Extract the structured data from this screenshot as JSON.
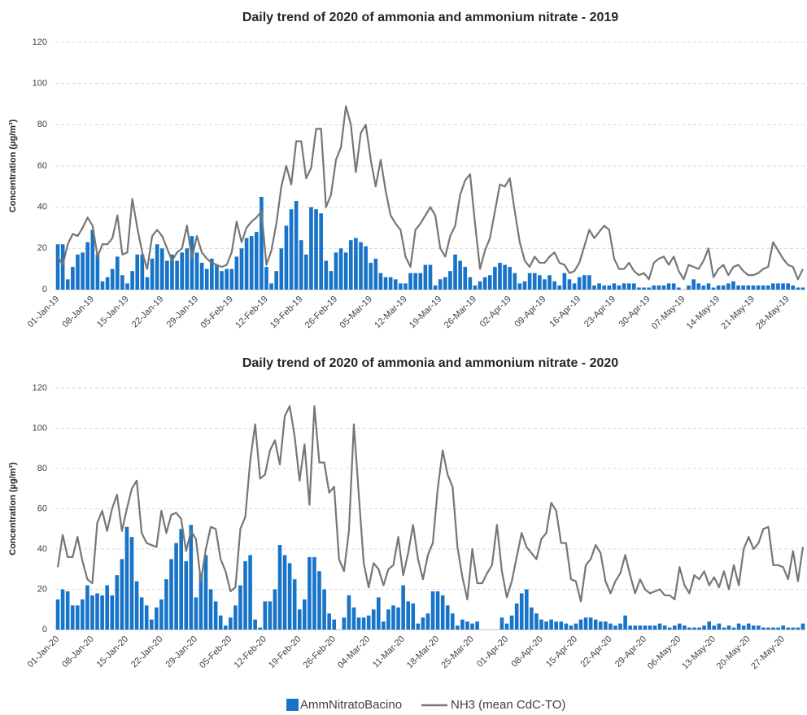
{
  "chart_data": [
    {
      "type": "bar_line",
      "title": "Daily trend of 2020 of ammonia and ammonium nitrate - 2019",
      "y_label": "Concentration (µg/m³)",
      "categories": [
        "01-Jan-19",
        null,
        null,
        null,
        null,
        null,
        null,
        "08-Jan-19",
        null,
        null,
        null,
        null,
        null,
        null,
        "15-Jan-19",
        null,
        null,
        null,
        null,
        null,
        null,
        "22-Jan-19",
        null,
        null,
        null,
        null,
        null,
        null,
        "29-Jan-19",
        null,
        null,
        null,
        null,
        null,
        null,
        "05-Feb-19",
        null,
        null,
        null,
        null,
        null,
        null,
        "12-Feb-19",
        null,
        null,
        null,
        null,
        null,
        null,
        "19-Feb-19",
        null,
        null,
        null,
        null,
        null,
        null,
        "26-Feb-19",
        null,
        null,
        null,
        null,
        null,
        null,
        "05-Mar-19",
        null,
        null,
        null,
        null,
        null,
        null,
        "12-Mar-19",
        null,
        null,
        null,
        null,
        null,
        null,
        "19-Mar-19",
        null,
        null,
        null,
        null,
        null,
        null,
        "26-Mar-19",
        null,
        null,
        null,
        null,
        null,
        null,
        "02-Apr-19",
        null,
        null,
        null,
        null,
        null,
        null,
        "09-Apr-19",
        null,
        null,
        null,
        null,
        null,
        null,
        "16-Apr-19",
        null,
        null,
        null,
        null,
        null,
        null,
        "23-Apr-19",
        null,
        null,
        null,
        null,
        null,
        null,
        "30-Apr-19",
        null,
        null,
        null,
        null,
        null,
        null,
        "07-May-19",
        null,
        null,
        null,
        null,
        null,
        null,
        "14-May-19",
        null,
        null,
        null,
        null,
        null,
        null,
        "21-May-19",
        null,
        null,
        null,
        null,
        null,
        null,
        "28-May-19",
        null,
        null,
        null
      ],
      "series": [
        {
          "name": "AmmNitratoBacino",
          "kind": "bar",
          "color": "#1874c9",
          "values": [
            22,
            22,
            5,
            11,
            17,
            18,
            23,
            29,
            17,
            4,
            6,
            10,
            16,
            7,
            3,
            9,
            17,
            17,
            6,
            15,
            22,
            20,
            14,
            17,
            14,
            18,
            20,
            26,
            18,
            13,
            10,
            15,
            12,
            9,
            10,
            10,
            16,
            20,
            25,
            26,
            28,
            45,
            11,
            3,
            9,
            20,
            31,
            39,
            43,
            24,
            17,
            40,
            39,
            37,
            14,
            9,
            18,
            20,
            18,
            24,
            25,
            23,
            21,
            13,
            15,
            8,
            6,
            6,
            5,
            3,
            3,
            8,
            8,
            8,
            12,
            12,
            2,
            5,
            6,
            9,
            17,
            14,
            11,
            6,
            2,
            4,
            6,
            7,
            11,
            13,
            12,
            11,
            8,
            3,
            4,
            8,
            8,
            7,
            5,
            7,
            4,
            2,
            8,
            5,
            3,
            6,
            7,
            7,
            2,
            3,
            2,
            2,
            3,
            2,
            3,
            3,
            3,
            1,
            1,
            1,
            2,
            2,
            2,
            3,
            3,
            1,
            0,
            2,
            5,
            3,
            2,
            3,
            1,
            2,
            2,
            3,
            4,
            2,
            2,
            2,
            2,
            2,
            2,
            2,
            3,
            3,
            3,
            3,
            2,
            1,
            1
          ]
        },
        {
          "name": "NH3 (mean CdC-TO)",
          "kind": "line",
          "color": "#767676",
          "values": [
            16,
            12,
            22,
            27,
            26,
            30,
            35,
            31,
            16,
            22,
            22,
            25,
            36,
            17,
            18,
            44,
            30,
            18,
            10,
            26,
            29,
            26,
            20,
            14,
            18,
            20,
            31,
            15,
            26,
            18,
            15,
            13,
            12,
            11,
            12,
            18,
            33,
            23,
            30,
            33,
            35,
            38,
            12,
            19,
            32,
            50,
            60,
            51,
            72,
            72,
            54,
            59,
            78,
            78,
            40,
            46,
            63,
            69,
            89,
            80,
            57,
            76,
            80,
            63,
            50,
            63,
            48,
            36,
            32,
            29,
            16,
            11,
            29,
            32,
            36,
            40,
            36,
            20,
            16,
            26,
            31,
            46,
            53,
            56,
            32,
            10,
            19,
            25,
            38,
            51,
            50,
            54,
            38,
            23,
            14,
            11,
            16,
            13,
            13,
            16,
            18,
            13,
            12,
            8,
            9,
            13,
            21,
            29,
            25,
            28,
            31,
            29,
            15,
            10,
            10,
            13,
            9,
            7,
            8,
            5,
            13,
            15,
            16,
            12,
            16,
            9,
            5,
            12,
            11,
            10,
            14,
            20,
            6,
            10,
            12,
            7,
            11,
            12,
            9,
            7,
            7,
            8,
            10,
            11,
            23,
            19,
            15,
            12,
            11,
            5,
            10
          ]
        }
      ],
      "ylim": [
        0,
        120
      ],
      "yticks": [
        0,
        20,
        40,
        60,
        80,
        100,
        120
      ],
      "grid": true
    },
    {
      "type": "bar_line",
      "title": "Daily trend of 2020 of ammonia and ammonium nitrate - 2020",
      "y_label": "Concentration (µg/m³)",
      "categories": [
        "01-Jan-20",
        null,
        null,
        null,
        null,
        null,
        null,
        "08-Jan-20",
        null,
        null,
        null,
        null,
        null,
        null,
        "15-Jan-20",
        null,
        null,
        null,
        null,
        null,
        null,
        "22-Jan-20",
        null,
        null,
        null,
        null,
        null,
        null,
        "29-Jan-20",
        null,
        null,
        null,
        null,
        null,
        null,
        "05-Feb-20",
        null,
        null,
        null,
        null,
        null,
        null,
        "12-Feb-20",
        null,
        null,
        null,
        null,
        null,
        null,
        "19-Feb-20",
        null,
        null,
        null,
        null,
        null,
        null,
        "26-Feb-20",
        null,
        null,
        null,
        null,
        null,
        null,
        "04-Mar-20",
        null,
        null,
        null,
        null,
        null,
        null,
        "11-Mar-20",
        null,
        null,
        null,
        null,
        null,
        null,
        "18-Mar-20",
        null,
        null,
        null,
        null,
        null,
        null,
        "25-Mar-20",
        null,
        null,
        null,
        null,
        null,
        null,
        "01-Apr-20",
        null,
        null,
        null,
        null,
        null,
        null,
        "08-Apr-20",
        null,
        null,
        null,
        null,
        null,
        null,
        "15-Apr-20",
        null,
        null,
        null,
        null,
        null,
        null,
        "22-Apr-20",
        null,
        null,
        null,
        null,
        null,
        null,
        "29-Apr-20",
        null,
        null,
        null,
        null,
        null,
        null,
        "06-May-20",
        null,
        null,
        null,
        null,
        null,
        null,
        "13-May-20",
        null,
        null,
        null,
        null,
        null,
        null,
        "20-May-20",
        null,
        null,
        null,
        null,
        null,
        null,
        "27-May-20",
        null,
        null,
        null,
        null
      ],
      "series": [
        {
          "name": "AmmNitratoBacino",
          "kind": "bar",
          "color": "#1874c9",
          "values": [
            15,
            20,
            19,
            12,
            12,
            15,
            22,
            17,
            18,
            17,
            22,
            17,
            27,
            35,
            51,
            46,
            24,
            16,
            12,
            5,
            11,
            15,
            25,
            35,
            43,
            50,
            34,
            52,
            16,
            28,
            37,
            20,
            14,
            7,
            2,
            6,
            12,
            22,
            34,
            37,
            5,
            1,
            14,
            14,
            20,
            42,
            37,
            33,
            25,
            10,
            15,
            36,
            36,
            29,
            20,
            8,
            5,
            0,
            6,
            17,
            11,
            6,
            6,
            7,
            10,
            16,
            4,
            10,
            12,
            11,
            22,
            14,
            13,
            3,
            6,
            8,
            19,
            19,
            17,
            12,
            8,
            2,
            5,
            4,
            3,
            4,
            0,
            0,
            0,
            0,
            6,
            3,
            7,
            13,
            18,
            20,
            11,
            8,
            5,
            4,
            5,
            4,
            4,
            3,
            2,
            3,
            5,
            6,
            6,
            5,
            4,
            4,
            3,
            2,
            3,
            7,
            2,
            2,
            2,
            2,
            2,
            2,
            3,
            2,
            1,
            2,
            3,
            2,
            1,
            1,
            1,
            2,
            4,
            2,
            3,
            1,
            2,
            1,
            3,
            2,
            3,
            2,
            2,
            1,
            1,
            1,
            1,
            2,
            1,
            1,
            1,
            3
          ]
        },
        {
          "name": "NH3 (mean CdC-TO)",
          "kind": "line",
          "color": "#767676",
          "values": [
            31,
            47,
            36,
            36,
            46,
            34,
            25,
            23,
            53,
            59,
            49,
            60,
            67,
            49,
            60,
            70,
            74,
            48,
            43,
            42,
            41,
            59,
            48,
            57,
            58,
            55,
            39,
            49,
            45,
            24,
            40,
            51,
            50,
            35,
            29,
            19,
            21,
            50,
            56,
            84,
            102,
            75,
            77,
            89,
            94,
            82,
            106,
            111,
            96,
            74,
            92,
            62,
            111,
            83,
            83,
            68,
            71,
            35,
            29,
            49,
            102,
            67,
            33,
            21,
            33,
            30,
            22,
            30,
            32,
            46,
            27,
            38,
            52,
            35,
            25,
            37,
            43,
            70,
            89,
            77,
            71,
            41,
            26,
            15,
            40,
            23,
            23,
            28,
            32,
            52,
            29,
            16,
            24,
            36,
            48,
            41,
            38,
            35,
            45,
            48,
            63,
            59,
            43,
            43,
            25,
            24,
            14,
            32,
            35,
            42,
            38,
            24,
            18,
            24,
            28,
            37,
            27,
            18,
            25,
            20,
            18,
            19,
            20,
            17,
            17,
            15,
            31,
            22,
            18,
            27,
            25,
            29,
            22,
            26,
            21,
            29,
            20,
            32,
            22,
            40,
            46,
            40,
            43,
            50,
            51,
            32,
            32,
            31,
            25,
            39,
            24,
            41
          ]
        }
      ],
      "ylim": [
        0,
        120
      ],
      "yticks": [
        0,
        20,
        40,
        60,
        80,
        100,
        120
      ],
      "grid": true
    }
  ]
}
